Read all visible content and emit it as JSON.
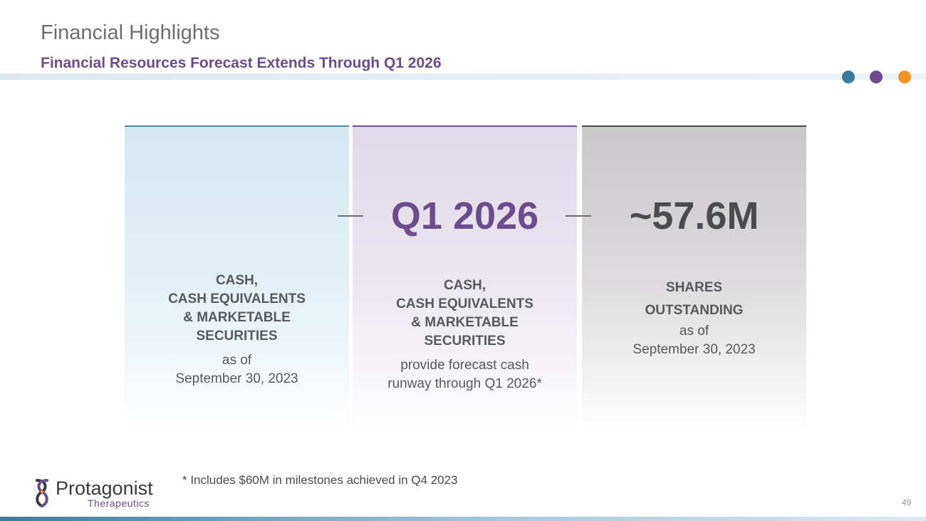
{
  "header": {
    "title": "Financial Highlights",
    "subtitle": "Financial Resources Forecast Extends Through Q1 2026"
  },
  "colors": {
    "teal": "#3b7c9a",
    "purple": "#6b4c8c",
    "orange": "#f39322",
    "dark_gray": "#4b4b4d"
  },
  "panels": [
    {
      "value": "",
      "heading_lines": [
        "CASH,",
        "CASH EQUIVALENTS",
        "& MARKETABLE",
        "SECURITIES"
      ],
      "detail_lines": [
        "as of",
        "September 30, 2023"
      ]
    },
    {
      "value": "Q1 2026",
      "heading_lines": [
        "CASH,",
        "CASH EQUIVALENTS",
        "& MARKETABLE",
        "SECURITIES"
      ],
      "detail_lines": [
        "provide forecast cash",
        "runway through Q1 2026*"
      ]
    },
    {
      "value": "~57.6M",
      "heading_lines": [
        "SHARES",
        "OUTSTANDING"
      ],
      "detail_lines": [
        "as of",
        "September 30, 2023"
      ]
    }
  ],
  "footnote": "* Includes $60M in milestones achieved in Q4 2023",
  "logo": {
    "name": "Protagonist",
    "sub": "Therapeutics"
  },
  "page_number": "49"
}
